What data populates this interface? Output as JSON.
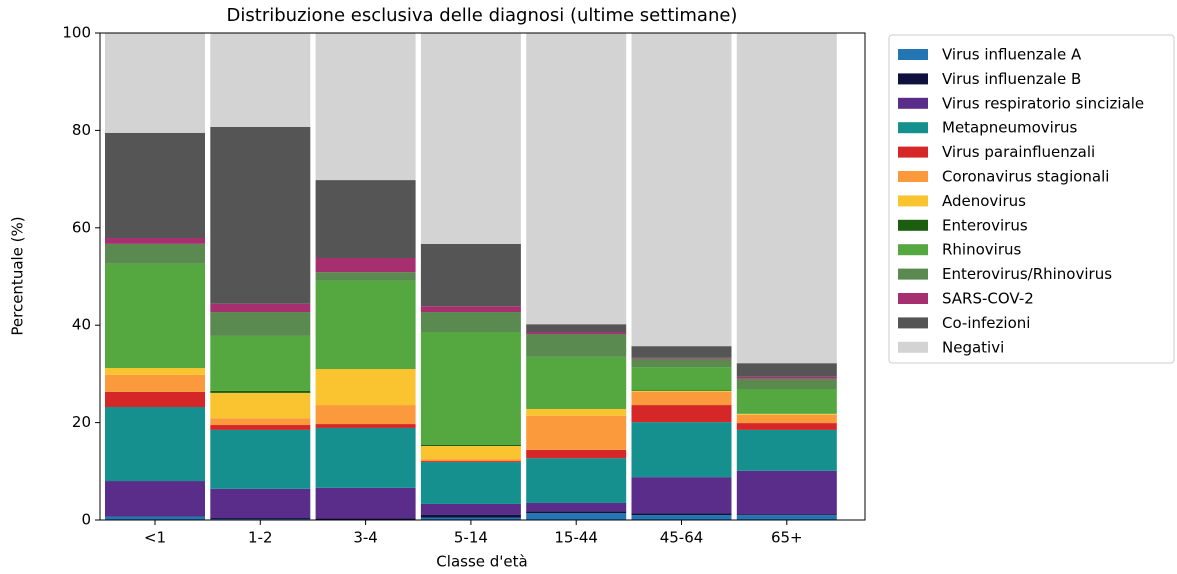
{
  "chart_data": {
    "type": "bar",
    "stacked": true,
    "title": "Distribuzione esclusiva delle diagnosi (ultime settimane)",
    "x_label": "Classe d'età",
    "y_label": "Percentuale (%)",
    "categories": [
      "<1",
      "1-2",
      "3-4",
      "5-14",
      "15-44",
      "45-64",
      "65+"
    ],
    "ylim": [
      0,
      100
    ],
    "yticks": [
      0,
      20,
      40,
      60,
      80,
      100
    ],
    "grid": false,
    "legend": "outside right",
    "series": [
      {
        "name": "Virus influenzale A",
        "color": "#2475b4",
        "values": [
          0.7,
          0.2,
          0.1,
          0.5,
          1.4,
          1.0,
          1.0
        ]
      },
      {
        "name": "Virus influenzale B",
        "color": "#10103f",
        "values": [
          0.1,
          0.2,
          0.2,
          0.6,
          0.4,
          0.4,
          0.2
        ]
      },
      {
        "name": "Virus respiratorio sinciziale",
        "color": "#5a2d8a",
        "values": [
          7.2,
          6.0,
          6.3,
          2.2,
          1.7,
          7.4,
          8.9
        ]
      },
      {
        "name": "Metapneumovirus",
        "color": "#168f8f",
        "values": [
          15.2,
          12.1,
          12.3,
          8.6,
          9.2,
          11.3,
          8.4
        ]
      },
      {
        "name": "Virus parainfluenzali",
        "color": "#d62728",
        "values": [
          3.1,
          1.0,
          0.8,
          0.2,
          1.7,
          3.5,
          1.4
        ]
      },
      {
        "name": "Coronavirus stagionali",
        "color": "#fb9a3c",
        "values": [
          3.5,
          1.4,
          3.9,
          0.4,
          7.0,
          2.7,
          1.7
        ]
      },
      {
        "name": "Adenovirus",
        "color": "#f9c42f",
        "values": [
          1.4,
          5.2,
          7.4,
          2.7,
          1.4,
          0.2,
          0.2
        ]
      },
      {
        "name": "Enterovirus",
        "color": "#1b5e0f",
        "values": [
          0,
          0.4,
          0,
          0.2,
          0,
          0.1,
          0
        ]
      },
      {
        "name": "Rhinovirus",
        "color": "#55a83f",
        "values": [
          21.4,
          11.3,
          18.1,
          23.2,
          10.7,
          4.8,
          5.1
        ]
      },
      {
        "name": "Enterovirus/Rhinovirus",
        "color": "#5a8a50",
        "values": [
          4.1,
          4.9,
          1.8,
          4.1,
          4.7,
          1.7,
          2.1
        ]
      },
      {
        "name": "SARS-COV-2",
        "color": "#a6306f",
        "values": [
          1.2,
          1.7,
          2.9,
          1.2,
          0.4,
          0.2,
          0.4
        ]
      },
      {
        "name": "Co-infezioni",
        "color": "#555555",
        "values": [
          21.6,
          36.3,
          16.0,
          12.8,
          1.6,
          2.4,
          2.8
        ]
      },
      {
        "name": "Negativi",
        "color": "#d3d3d3",
        "values": [
          20.5,
          19.3,
          30.2,
          43.3,
          59.8,
          64.3,
          67.8
        ]
      }
    ]
  }
}
